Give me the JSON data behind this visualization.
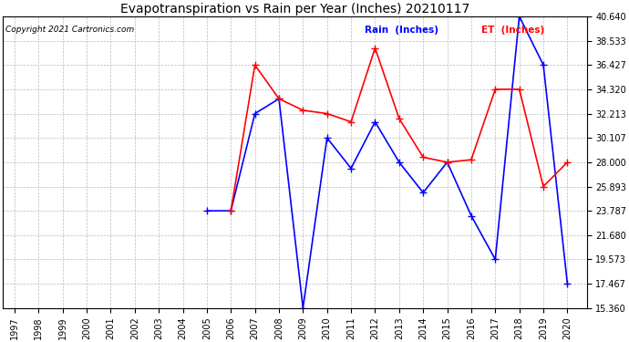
{
  "title": "Evapotranspiration vs Rain per Year (Inches) 20210117",
  "copyright": "Copyright 2021 Cartronics.com",
  "legend_rain": "Rain  (Inches)",
  "legend_et": "ET  (Inches)",
  "rain_color": "#0000ff",
  "et_color": "#ff0000",
  "rain_data": {
    "2005": 23.787,
    "2006": 23.787,
    "2007": 32.213,
    "2008": 33.5,
    "2009": 15.36,
    "2010": 30.107,
    "2011": 27.467,
    "2012": 31.5,
    "2013": 28.0,
    "2014": 25.36,
    "2015": 28.0,
    "2016": 23.36,
    "2017": 19.573,
    "2018": 40.64,
    "2019": 36.427,
    "2020": 17.467
  },
  "et_data": {
    "2006": 23.787,
    "2007": 36.427,
    "2008": 33.5,
    "2009": 32.5,
    "2010": 32.213,
    "2011": 31.5,
    "2012": 37.893,
    "2013": 31.787,
    "2014": 28.427,
    "2015": 28.0,
    "2016": 28.213,
    "2017": 34.32,
    "2018": 34.32,
    "2019": 25.893,
    "2020": 28.0
  },
  "ylim": [
    15.36,
    40.64
  ],
  "yticks": [
    15.36,
    17.467,
    19.573,
    21.68,
    23.787,
    25.893,
    28.0,
    30.107,
    32.213,
    34.32,
    36.427,
    38.533,
    40.64
  ],
  "background_color": "#ffffff",
  "grid_color": "#aaaaaa",
  "title_fontsize": 10,
  "copyright_fontsize": 6.5,
  "tick_fontsize": 7,
  "marker": "+",
  "markersize": 6,
  "linewidth": 1.2
}
